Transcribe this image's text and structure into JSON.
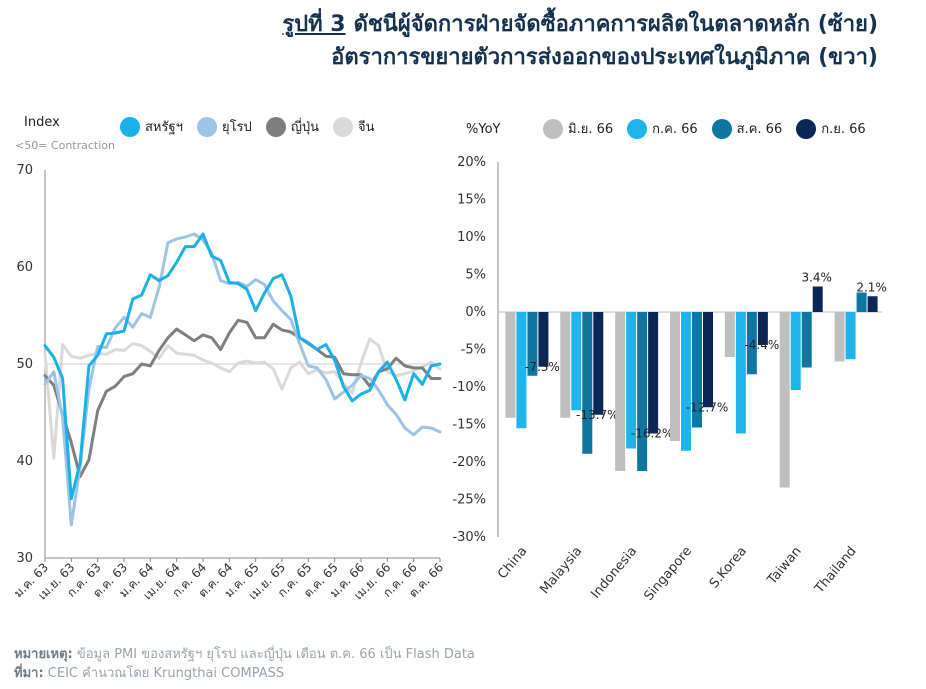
{
  "title": {
    "figure_label": "รูปที่ 3",
    "line1": "ดัชนีผู้จัดการฝ่ายจัดซื้อภาคการผลิตในตลาดหลัก (ซ้าย)",
    "line2": "อัตราการขยายตัวการส่งออกของประเทศในภูมิภาค (ขวา)"
  },
  "footer": {
    "note_label": "หมายเหตุ:",
    "note_text": "ข้อมูล PMI ของสหรัฐฯ ยุโรป และญี่ปุ่น เดือน ต.ค. 66 เป็น Flash Data",
    "source_label": "ที่มา:",
    "source_text": "CEIC คำนวณโดย Krungthai COMPASS"
  },
  "chart_data": [
    {
      "type": "line",
      "ylabel": "Index",
      "ynote": "<50= Contraction",
      "ylim": [
        30,
        70
      ],
      "yticks": [
        "30",
        "40",
        "50",
        "60",
        "70"
      ],
      "reference_line": 50,
      "xtick_labels": [
        "ม.ค. 63",
        "เม.ย. 63",
        "ก.ค. 63",
        "ต.ค. 63",
        "ม.ค. 64",
        "เม.ย. 64",
        "ก.ค. 64",
        "ต.ค. 64",
        "ม.ค. 65",
        "เม.ย. 65",
        "ก.ค. 65",
        "ต.ค. 65",
        "ม.ค. 66",
        "เม.ย. 66",
        "ก.ค. 66",
        "ต.ค. 66"
      ],
      "x": [
        "ม.ค. 63",
        "ก.พ. 63",
        "มี.ค. 63",
        "เม.ย. 63",
        "พ.ค. 63",
        "มิ.ย. 63",
        "ก.ค. 63",
        "ส.ค. 63",
        "ก.ย. 63",
        "ต.ค. 63",
        "พ.ย. 63",
        "ธ.ค. 63",
        "ม.ค. 64",
        "ก.พ. 64",
        "มี.ค. 64",
        "เม.ย. 64",
        "พ.ค. 64",
        "มิ.ย. 64",
        "ก.ค. 64",
        "ส.ค. 64",
        "ก.ย. 64",
        "ต.ค. 64",
        "พ.ย. 64",
        "ธ.ค. 64",
        "ม.ค. 65",
        "ก.พ. 65",
        "มี.ค. 65",
        "เม.ย. 65",
        "พ.ค. 65",
        "มิ.ย. 65",
        "ก.ค. 65",
        "ส.ค. 65",
        "ก.ย. 65",
        "ต.ค. 65",
        "พ.ย. 65",
        "ธ.ค. 65",
        "ม.ค. 66",
        "ก.พ. 66",
        "มี.ค. 66",
        "เม.ย. 66",
        "พ.ค. 66",
        "มิ.ย. 66",
        "ก.ค. 66",
        "ส.ค. 66",
        "ก.ย. 66",
        "ต.ค. 66"
      ],
      "series": [
        {
          "name": "สหรัฐฯ",
          "color": "#1ab0e8",
          "width": 3,
          "values": [
            51.9,
            50.7,
            48.5,
            36.1,
            39.8,
            49.8,
            50.9,
            53.1,
            53.2,
            53.4,
            56.7,
            57.1,
            59.2,
            58.6,
            59.1,
            60.5,
            62.1,
            62.1,
            63.4,
            61.1,
            60.7,
            58.4,
            58.3,
            57.7,
            55.5,
            57.3,
            58.8,
            59.2,
            57.0,
            52.7,
            52.2,
            51.5,
            52.0,
            50.4,
            47.7,
            46.2,
            46.9,
            47.3,
            49.2,
            50.2,
            48.4,
            46.3,
            49.0,
            47.9,
            49.8,
            50.0
          ]
        },
        {
          "name": "ยุโรป",
          "color": "#9dc3e6",
          "width": 3,
          "values": [
            47.9,
            49.2,
            44.5,
            33.4,
            39.4,
            47.4,
            51.8,
            51.7,
            53.7,
            54.8,
            53.8,
            55.2,
            54.8,
            57.9,
            62.5,
            62.9,
            63.1,
            63.4,
            62.8,
            61.4,
            58.6,
            58.3,
            58.4,
            58.0,
            58.7,
            58.2,
            56.5,
            55.5,
            54.6,
            52.1,
            49.8,
            49.6,
            48.4,
            46.4,
            47.1,
            47.8,
            48.8,
            48.5,
            47.3,
            45.8,
            44.8,
            43.4,
            42.7,
            43.5,
            43.4,
            43.0
          ]
        },
        {
          "name": "ญี่ปุ่น",
          "color": "#7f7f7f",
          "width": 3,
          "values": [
            48.8,
            47.8,
            44.8,
            41.9,
            38.4,
            40.1,
            45.2,
            47.2,
            47.7,
            48.7,
            49.0,
            50.0,
            49.8,
            51.4,
            52.7,
            53.6,
            53.0,
            52.4,
            53.0,
            52.7,
            51.5,
            53.2,
            54.5,
            54.3,
            52.7,
            52.7,
            54.1,
            53.5,
            53.3,
            52.7,
            52.1,
            51.5,
            50.8,
            50.7,
            49.0,
            48.9,
            48.9,
            47.7,
            49.2,
            49.5,
            50.6,
            49.8,
            49.6,
            49.6,
            48.5,
            48.5
          ]
        },
        {
          "name": "จีน",
          "color": "#d9d9d9",
          "width": 3,
          "values": [
            51.1,
            40.3,
            52.0,
            50.8,
            50.6,
            50.9,
            51.1,
            51.0,
            51.5,
            51.4,
            52.1,
            51.9,
            51.3,
            50.6,
            51.9,
            51.1,
            51.0,
            50.9,
            50.4,
            50.1,
            49.6,
            49.2,
            50.1,
            50.3,
            50.1,
            50.2,
            49.5,
            47.4,
            49.6,
            50.2,
            49.0,
            49.4,
            49.1,
            49.2,
            48.0,
            47.0,
            50.1,
            52.6,
            51.9,
            49.2,
            48.8,
            49.0,
            49.3,
            49.7,
            50.2,
            49.5
          ]
        }
      ]
    },
    {
      "type": "bar",
      "ylabel": "%YoY",
      "ylim": [
        -30,
        20
      ],
      "yticks": [
        "20%",
        "15%",
        "10%",
        "5%",
        "0%",
        "-5%",
        "-10%",
        "-15%",
        "-20%",
        "-25%",
        "-30%"
      ],
      "categories": [
        "China",
        "Malaysia",
        "Indonesia",
        "Singapore",
        "S.Korea",
        "Taiwan",
        "Thailand"
      ],
      "series": [
        {
          "name": "มิ.ย. 66",
          "color": "#bfbfbf",
          "values": [
            -14.1,
            -14.1,
            -21.2,
            -17.2,
            -6.0,
            -23.4,
            -6.6
          ]
        },
        {
          "name": "ก.ค. 66",
          "color": "#1fb4ea",
          "values": [
            -15.5,
            -13.1,
            -18.2,
            -18.5,
            -16.2,
            -10.4,
            -6.3
          ]
        },
        {
          "name": "ส.ค. 66",
          "color": "#0f76a0",
          "values": [
            -8.5,
            -18.9,
            -21.2,
            -15.4,
            -8.3,
            -7.4,
            2.6
          ]
        },
        {
          "name": "ก.ย. 66",
          "color": "#0b2657",
          "values": [
            -7.3,
            -13.7,
            -16.2,
            -12.7,
            -4.4,
            3.4,
            2.1
          ]
        }
      ],
      "data_labels": [
        "-7.3%",
        "-13.7%",
        "-16.2%",
        "-12.7%",
        "-4.4%",
        "3.4%",
        "2.1%"
      ]
    }
  ]
}
